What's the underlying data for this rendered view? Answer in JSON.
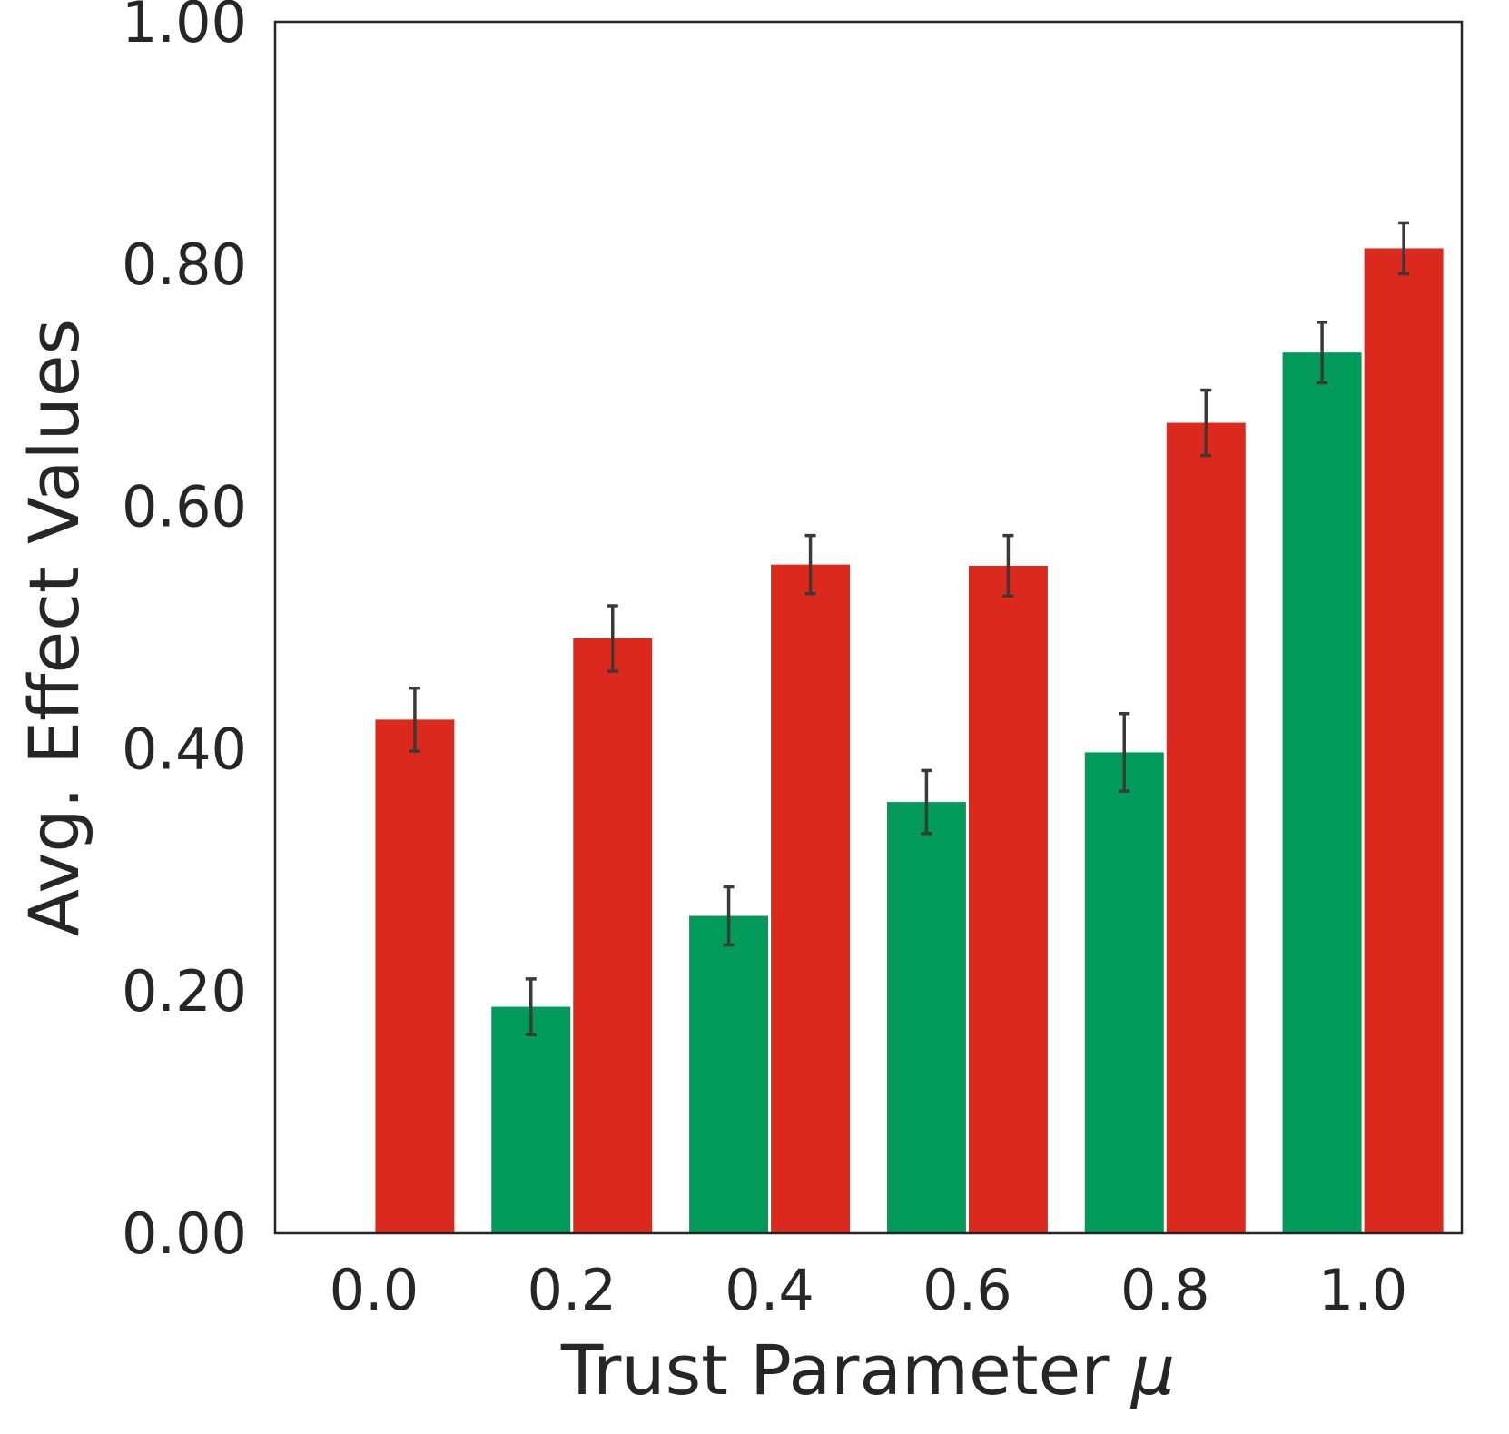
{
  "chart_data": {
    "type": "bar",
    "xlabel": "Trust Parameter",
    "xlabel_symbol": "μ",
    "ylabel": "Avg. Effect Values",
    "categories": [
      "0.0",
      "0.2",
      "0.4",
      "0.6",
      "0.8",
      "1.0"
    ],
    "yticks": [
      "0.00",
      "0.20",
      "0.40",
      "0.60",
      "0.80",
      "1.00"
    ],
    "ylim": [
      0,
      1.0
    ],
    "grid": false,
    "legend": null,
    "series": [
      {
        "color": "#009b5a",
        "values": [
          0.0,
          0.187,
          0.262,
          0.356,
          0.397,
          0.727
        ],
        "errors": [
          0.0,
          0.023,
          0.024,
          0.026,
          0.032,
          0.025
        ]
      },
      {
        "color": "#dc291e",
        "values": [
          0.424,
          0.491,
          0.552,
          0.551,
          0.669,
          0.813
        ],
        "errors": [
          0.026,
          0.027,
          0.024,
          0.025,
          0.027,
          0.021
        ]
      }
    ],
    "error_bar_color": "#3a3a3a"
  }
}
